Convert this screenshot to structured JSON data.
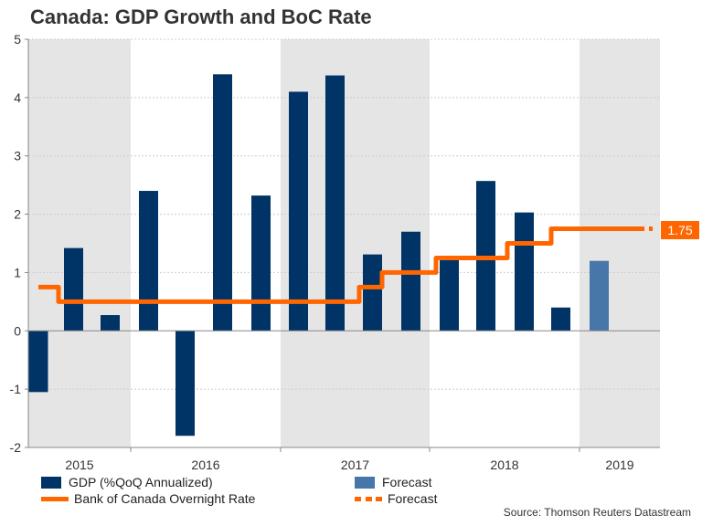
{
  "title": "Canada: GDP Growth and BoC Rate",
  "source": "Source: Thomson Reuters Datastream",
  "colors": {
    "gdp": "#003366",
    "gdp_forecast": "#4677A8",
    "rate": "#FF6600",
    "shade": "#E5E5E5",
    "grid": "#CCCCCC",
    "axis": "#888888"
  },
  "legend": {
    "gdp": "GDP (%QoQ Annualized)",
    "gdp_forecast": "Forecast",
    "rate": "Bank of Canada Overnight Rate",
    "rate_forecast": "Forecast"
  },
  "rate_label": "1.75",
  "chart_data": {
    "type": "bar",
    "title": "Canada: GDP Growth and BoC Rate",
    "xlabel": "",
    "ylabel": "",
    "ylim": [
      -2,
      5
    ],
    "yticks": [
      -2,
      -1,
      0,
      1,
      2,
      3,
      4,
      5
    ],
    "grid": true,
    "legend_position": "bottom",
    "year_labels": [
      "2015",
      "2016",
      "2017",
      "2018",
      "2019"
    ],
    "categories": [
      "2015Q1",
      "2015Q2",
      "2015Q3",
      "2015Q4",
      "2016Q1",
      "2016Q2",
      "2016Q3",
      "2016Q4",
      "2017Q1",
      "2017Q2",
      "2017Q3",
      "2017Q4",
      "2018Q1",
      "2018Q2",
      "2018Q3",
      "2018Q4"
    ],
    "series": [
      {
        "name": "GDP (%QoQ Annualized)",
        "type": "bar",
        "values": [
          -1.05,
          1.42,
          0.27,
          2.4,
          -1.8,
          4.4,
          2.32,
          4.1,
          4.38,
          1.31,
          1.7,
          1.22,
          2.57,
          2.03,
          0.4,
          null
        ]
      },
      {
        "name": "Forecast",
        "type": "bar",
        "values": [
          null,
          null,
          null,
          null,
          null,
          null,
          null,
          null,
          null,
          null,
          null,
          null,
          null,
          null,
          null,
          1.2
        ]
      },
      {
        "name": "Bank of Canada Overnight Rate",
        "type": "step-line",
        "values": [
          0.75,
          0.5,
          0.5,
          0.5,
          0.5,
          0.5,
          0.5,
          0.5,
          0.5,
          0.75,
          1.0,
          1.25,
          1.25,
          1.5,
          1.75,
          1.75
        ]
      },
      {
        "name": "Forecast",
        "type": "dotted-line",
        "values": [
          null,
          null,
          null,
          null,
          null,
          null,
          null,
          null,
          null,
          null,
          null,
          null,
          null,
          null,
          null,
          1.75
        ]
      }
    ],
    "rate_steps": [
      {
        "from_quarter": 0,
        "value": 0.75
      },
      {
        "from_quarter": 0.55,
        "value": 0.5
      },
      {
        "from_quarter": 8.6,
        "value": 0.75
      },
      {
        "from_quarter": 9.2,
        "value": 1.0
      },
      {
        "from_quarter": 10.65,
        "value": 1.25
      },
      {
        "from_quarter": 12.55,
        "value": 1.5
      },
      {
        "from_quarter": 13.7,
        "value": 1.75
      }
    ],
    "annotation": "1.75"
  }
}
